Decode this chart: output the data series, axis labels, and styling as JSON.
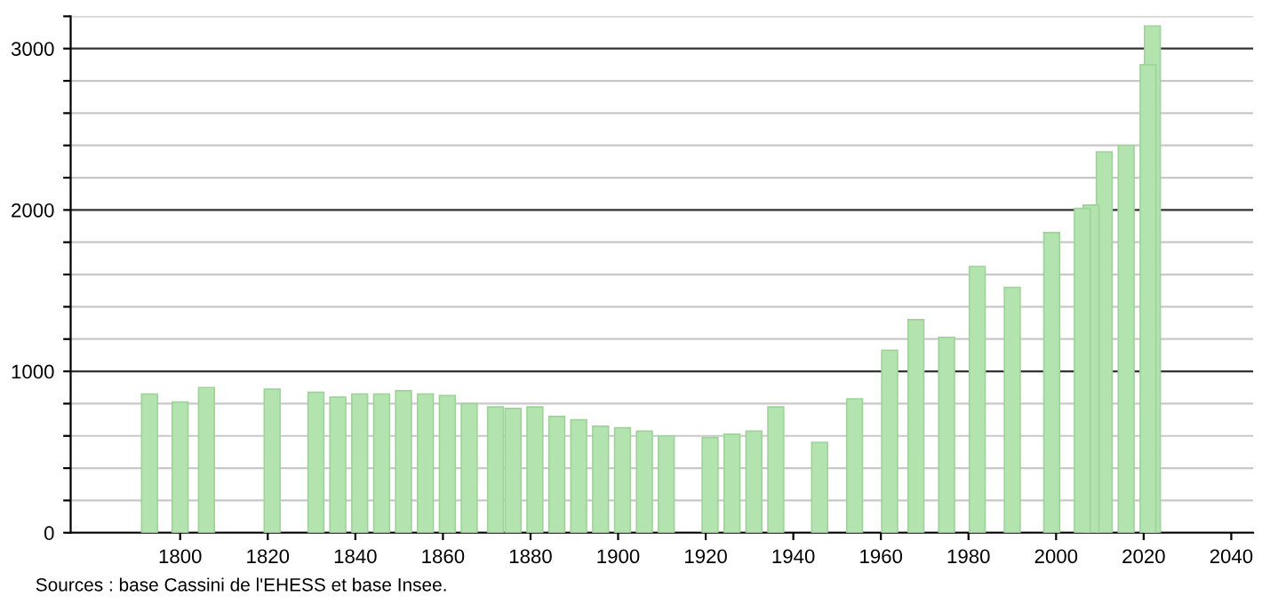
{
  "chart_data": {
    "type": "bar",
    "x": [
      1793,
      1800,
      1806,
      1821,
      1831,
      1836,
      1841,
      1846,
      1851,
      1856,
      1861,
      1866,
      1872,
      1876,
      1881,
      1886,
      1891,
      1896,
      1901,
      1906,
      1911,
      1921,
      1926,
      1931,
      1936,
      1946,
      1954,
      1962,
      1968,
      1975,
      1982,
      1990,
      1999,
      2006,
      2008,
      2011,
      2016,
      2021,
      2022
    ],
    "values": [
      860,
      810,
      900,
      890,
      870,
      840,
      860,
      860,
      880,
      860,
      850,
      800,
      780,
      770,
      780,
      720,
      700,
      660,
      650,
      630,
      600,
      590,
      610,
      630,
      780,
      560,
      830,
      1130,
      1320,
      1210,
      1650,
      1520,
      1860,
      2010,
      2030,
      2360,
      2400,
      2900,
      3140
    ],
    "color": "#b3e3ae",
    "xlim": [
      1775,
      2045
    ],
    "xticks": [
      1800,
      1820,
      1840,
      1860,
      1880,
      1900,
      1920,
      1940,
      1960,
      1980,
      2000,
      2020,
      2040
    ],
    "ylim": [
      0,
      3200
    ],
    "yticks": [
      0,
      {
        "value": 200,
        "label": null
      },
      {
        "value": 400,
        "label": null
      },
      {
        "value": 600,
        "label": null
      },
      {
        "value": 800,
        "label": null
      },
      1000,
      {
        "value": 1200,
        "label": null
      },
      {
        "value": 1400,
        "label": null
      },
      {
        "value": 1600,
        "label": null
      },
      {
        "value": 1800,
        "label": null
      },
      2000,
      {
        "value": 2200,
        "label": null
      },
      {
        "value": 2400,
        "label": null
      },
      {
        "value": 2600,
        "label": null
      },
      {
        "value": 2800,
        "label": null
      },
      3000,
      {
        "value": 3200,
        "label": null
      }
    ],
    "grid": "y",
    "annotations": [
      "Sources : base Cassini de l'EHESS et base Insee."
    ]
  }
}
